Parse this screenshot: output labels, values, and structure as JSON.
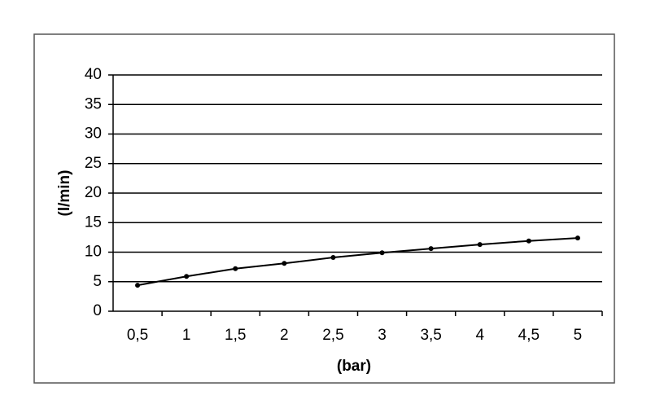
{
  "chart_data": {
    "type": "line",
    "x_label": "(bar)",
    "y_label": "(l/min)",
    "categories": [
      "0,5",
      "1",
      "1,5",
      "2",
      "2,5",
      "3",
      "3,5",
      "4",
      "4,5",
      "5"
    ],
    "values": [
      4.4,
      5.9,
      7.2,
      8.1,
      9.1,
      9.9,
      10.6,
      11.3,
      11.9,
      12.4
    ],
    "color": "#000000",
    "ylim": [
      0,
      40
    ],
    "yticks": [
      0,
      5,
      10,
      15,
      20,
      25,
      30,
      35,
      40
    ],
    "grid": true
  }
}
